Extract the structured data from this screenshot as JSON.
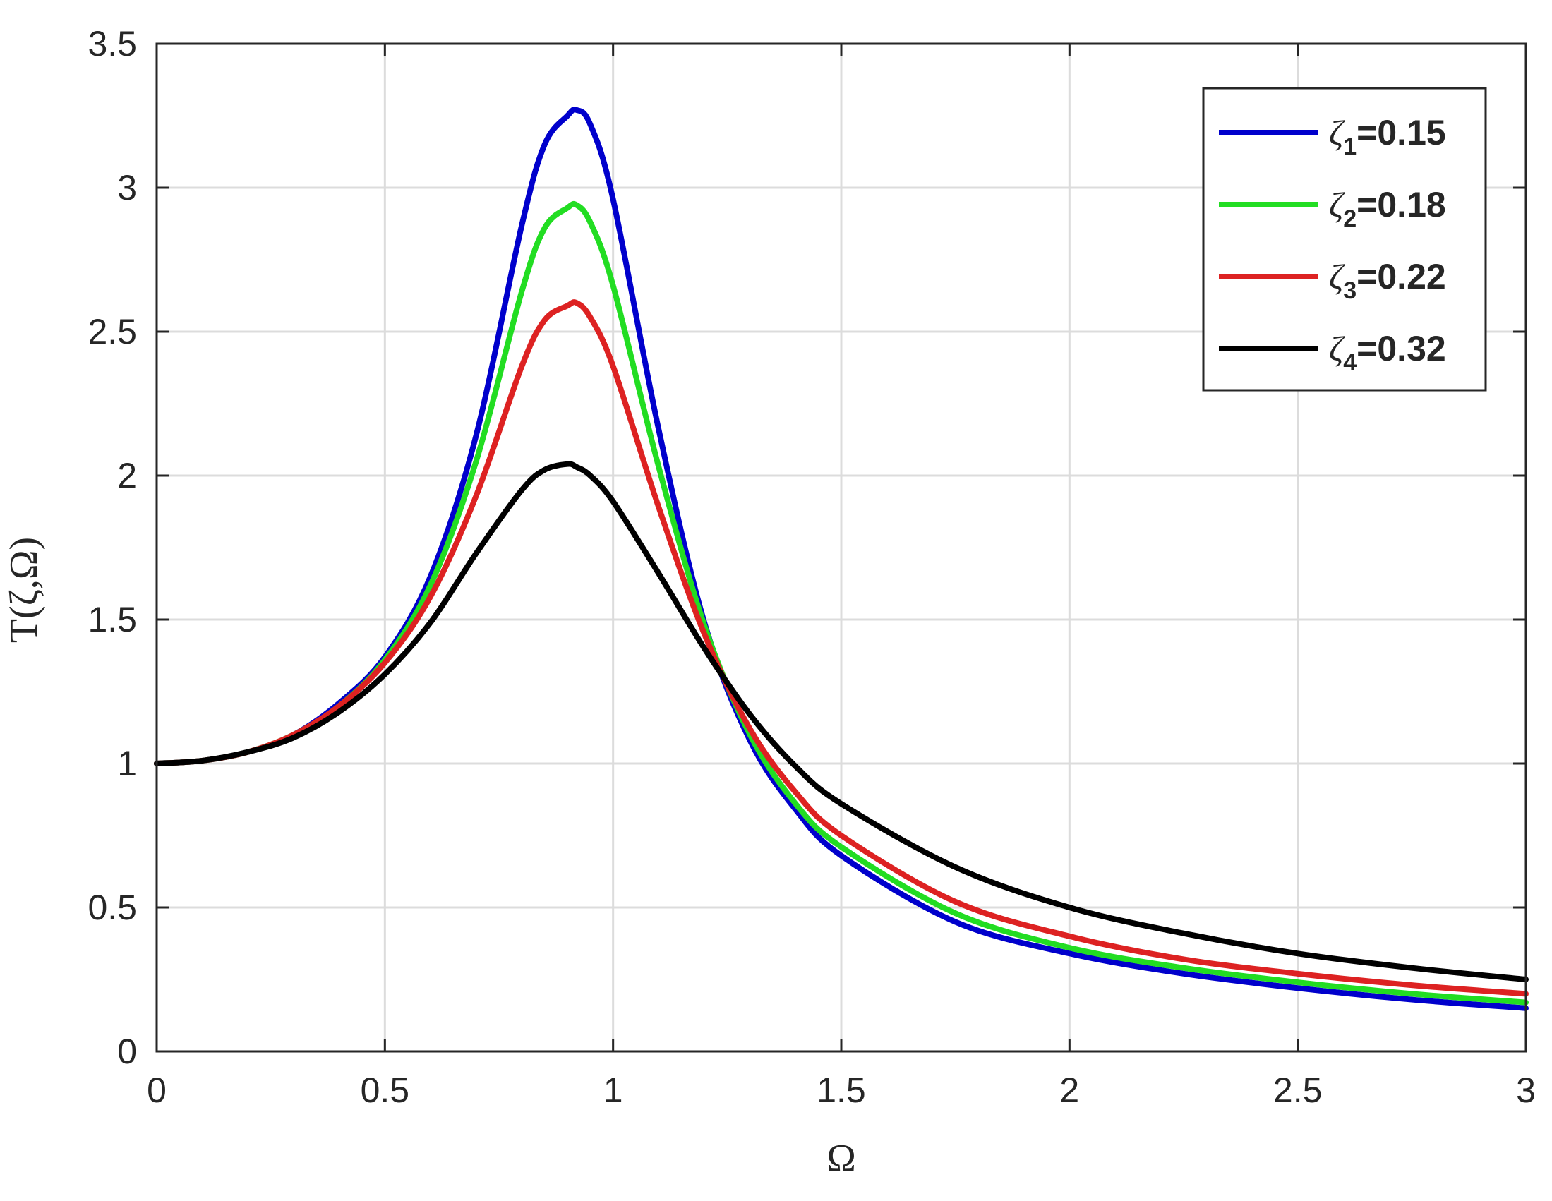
{
  "chart_data": {
    "type": "line",
    "title": "",
    "xlabel": "Ω",
    "ylabel": "T(ζ,Ω)",
    "xlim": [
      0,
      3
    ],
    "ylim": [
      0,
      3.5
    ],
    "xticks": [
      0,
      0.5,
      1,
      1.5,
      2,
      2.5,
      3
    ],
    "xtick_labels": [
      "0",
      "0.5",
      "1",
      "1.5",
      "2",
      "2.5",
      "3"
    ],
    "yticks": [
      0,
      0.5,
      1,
      1.5,
      2,
      2.5,
      3,
      3.5
    ],
    "ytick_labels": [
      "0",
      "0.5",
      "1",
      "1.5",
      "2",
      "2.5",
      "3",
      "3.5"
    ],
    "grid": true,
    "legend_position": "top-right",
    "x": [
      0,
      0.1,
      0.2,
      0.3,
      0.4,
      0.5,
      0.6,
      0.7,
      0.8,
      0.85,
      0.9,
      0.92,
      0.95,
      1.0,
      1.1,
      1.2,
      1.3,
      1.4,
      1.5,
      1.75,
      2.0,
      2.25,
      2.5,
      2.75,
      3.0
    ],
    "series": [
      {
        "name": "ζ1=0.15",
        "label_symbol": "ζ",
        "label_sub": "1",
        "label_value": "=0.15",
        "color": "#0000cc",
        "y": [
          1.0,
          1.01,
          1.04,
          1.1,
          1.21,
          1.37,
          1.65,
          2.14,
          2.87,
          3.15,
          3.25,
          3.27,
          3.22,
          2.96,
          2.16,
          1.49,
          1.08,
          0.84,
          0.68,
          0.45,
          0.34,
          0.27,
          0.22,
          0.18,
          0.15
        ]
      },
      {
        "name": "ζ2=0.18",
        "label_symbol": "ζ",
        "label_sub": "2",
        "label_value": "=0.18",
        "color": "#22dd22",
        "y": [
          1.0,
          1.01,
          1.04,
          1.1,
          1.2,
          1.36,
          1.62,
          2.05,
          2.64,
          2.86,
          2.93,
          2.94,
          2.88,
          2.66,
          2.03,
          1.48,
          1.1,
          0.86,
          0.71,
          0.48,
          0.36,
          0.29,
          0.24,
          0.2,
          0.17
        ]
      },
      {
        "name": "ζ3=0.22",
        "label_symbol": "ζ",
        "label_sub": "3",
        "label_value": "=0.22",
        "color": "#dd2222",
        "y": [
          1.0,
          1.01,
          1.04,
          1.1,
          1.2,
          1.35,
          1.58,
          1.93,
          2.38,
          2.54,
          2.59,
          2.6,
          2.55,
          2.38,
          1.89,
          1.45,
          1.12,
          0.9,
          0.75,
          0.52,
          0.4,
          0.32,
          0.27,
          0.23,
          0.2
        ]
      },
      {
        "name": "ζ4=0.32",
        "label_symbol": "ζ",
        "label_sub": "4",
        "label_value": "=0.32",
        "color": "#000000",
        "y": [
          1.0,
          1.01,
          1.04,
          1.09,
          1.18,
          1.31,
          1.49,
          1.73,
          1.95,
          2.02,
          2.04,
          2.03,
          2.0,
          1.91,
          1.66,
          1.4,
          1.17,
          0.99,
          0.86,
          0.64,
          0.5,
          0.41,
          0.34,
          0.29,
          0.25
        ]
      }
    ]
  }
}
